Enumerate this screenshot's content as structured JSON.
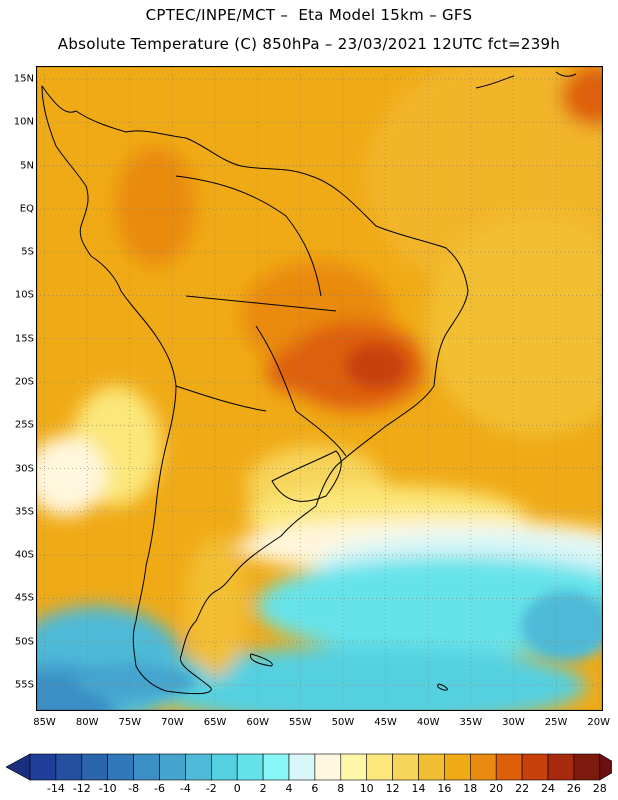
{
  "title": {
    "line1": "CPTEC/INPE/MCT –  Eta Model 15km – GFS",
    "line2": "Absolute Temperature (C) 850hPa – 23/03/2021 12UTC fct=239h"
  },
  "map": {
    "lat_labels": [
      "15N",
      "10N",
      "5N",
      "EQ",
      "5S",
      "10S",
      "15S",
      "20S",
      "25S",
      "30S",
      "35S",
      "40S",
      "45S",
      "50S",
      "55S"
    ],
    "lat_values": [
      15,
      10,
      5,
      0,
      -5,
      -10,
      -15,
      -20,
      -25,
      -30,
      -35,
      -40,
      -45,
      -50,
      -55
    ],
    "lon_labels": [
      "85W",
      "80W",
      "75W",
      "70W",
      "65W",
      "60W",
      "55W",
      "50W",
      "45W",
      "40W",
      "35W",
      "30W",
      "25W",
      "20W"
    ],
    "lon_values": [
      -85,
      -80,
      -75,
      -70,
      -65,
      -60,
      -55,
      -50,
      -45,
      -40,
      -35,
      -30,
      -25,
      -20
    ],
    "lat_range": [
      -58,
      16.5
    ],
    "lon_range": [
      -86,
      -19.5
    ],
    "gridlines": "dotted"
  },
  "colorbar": {
    "labels": [
      "-14",
      "-12",
      "-10",
      "-8",
      "-6",
      "-4",
      "-2",
      "0",
      "2",
      "4",
      "6",
      "8",
      "10",
      "12",
      "14",
      "16",
      "18",
      "20",
      "22",
      "24",
      "26",
      "28"
    ],
    "colors": [
      "#1f3f9a",
      "#24519f",
      "#2b65ad",
      "#2f78b9",
      "#3b8fc6",
      "#45a5cf",
      "#4ebad8",
      "#55d0e1",
      "#66e3ea",
      "#87f6f6",
      "#d9f6f8",
      "#fff7de",
      "#fff7a8",
      "#fbe77a",
      "#f7d45a",
      "#f2bf33",
      "#f0aa16",
      "#ea8a10",
      "#de5f0a",
      "#c8400b",
      "#a62a0d",
      "#7d1a0e"
    ],
    "under_color": "#1a2f7d",
    "over_color": "#6a0f12"
  }
}
